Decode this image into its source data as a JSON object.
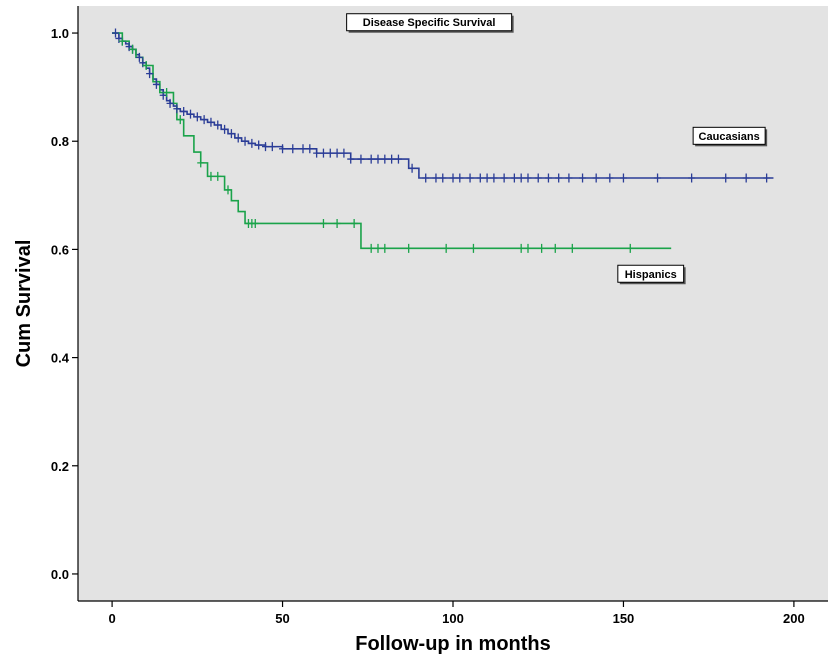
{
  "chart_data": {
    "type": "line",
    "title": "Disease Specific Survival",
    "xlabel": "Follow-up in months",
    "ylabel": "Cum Survival",
    "xlim": [
      -10,
      210
    ],
    "ylim": [
      -0.05,
      1.05
    ],
    "xticks": [
      0,
      50,
      100,
      150,
      200
    ],
    "xtick_labels": [
      "0",
      "50",
      "100",
      "150",
      "200"
    ],
    "yticks": [
      0.0,
      0.2,
      0.4,
      0.6,
      0.8,
      1.0
    ],
    "ytick_labels": [
      "0.0",
      "0.2",
      "0.4",
      "0.6",
      "0.8",
      "1.0"
    ],
    "grid": false,
    "background_color": "#e3e3e3",
    "series": [
      {
        "name": "Caucasians",
        "color": "#2b3d97",
        "step_x": [
          0,
          2,
          3,
          4,
          5,
          6,
          7,
          8,
          9,
          10,
          11,
          12,
          13,
          14,
          15,
          16,
          17,
          18,
          19,
          20,
          22,
          24,
          26,
          28,
          30,
          32,
          34,
          36,
          38,
          40,
          42,
          45,
          50,
          60,
          70,
          87,
          90,
          194
        ],
        "step_y": [
          1.0,
          0.99,
          0.985,
          0.98,
          0.975,
          0.97,
          0.96,
          0.955,
          0.945,
          0.935,
          0.925,
          0.915,
          0.905,
          0.895,
          0.885,
          0.875,
          0.87,
          0.865,
          0.86,
          0.855,
          0.85,
          0.845,
          0.84,
          0.835,
          0.83,
          0.822,
          0.814,
          0.806,
          0.8,
          0.796,
          0.793,
          0.79,
          0.786,
          0.778,
          0.767,
          0.75,
          0.732,
          0.732
        ],
        "censor_x": [
          1,
          2,
          3,
          5,
          6,
          8,
          9,
          11,
          13,
          15,
          17,
          19,
          21,
          23,
          25,
          27,
          29,
          31,
          33,
          35,
          37,
          39,
          41,
          43,
          45,
          47,
          50,
          53,
          56,
          58,
          60,
          62,
          64,
          66,
          68,
          70,
          73,
          76,
          78,
          80,
          82,
          84,
          88,
          92,
          95,
          97,
          100,
          102,
          105,
          108,
          110,
          112,
          115,
          118,
          120,
          122,
          125,
          128,
          131,
          134,
          138,
          142,
          146,
          150,
          160,
          170,
          180,
          186,
          192
        ]
      },
      {
        "name": "Hispanics",
        "color": "#1aa34a",
        "step_x": [
          0,
          3,
          5,
          7,
          9,
          12,
          14,
          18,
          19,
          21,
          24,
          26,
          28,
          33,
          35,
          37,
          39,
          73,
          164
        ],
        "step_y": [
          1.0,
          0.985,
          0.97,
          0.955,
          0.94,
          0.91,
          0.89,
          0.87,
          0.84,
          0.81,
          0.78,
          0.76,
          0.735,
          0.71,
          0.69,
          0.67,
          0.648,
          0.602,
          0.602
        ],
        "censor_x": [
          3,
          6,
          10,
          16,
          20,
          26,
          29,
          31,
          34,
          40,
          41,
          42,
          62,
          66,
          71,
          76,
          78,
          80,
          87,
          98,
          106,
          120,
          122,
          126,
          130,
          135,
          152
        ]
      }
    ],
    "annotations": [
      {
        "text": "Caucasians",
        "x": 181,
        "y": 0.81
      },
      {
        "text": "Hispanics",
        "x": 158,
        "y": 0.555
      }
    ]
  }
}
